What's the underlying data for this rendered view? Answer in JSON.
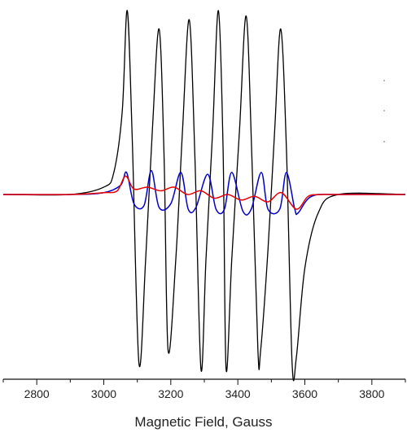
{
  "chart_data": {
    "type": "line",
    "xlabel": "Magnetic Field, Gauss",
    "xlim": [
      2700,
      3900
    ],
    "ylim": [
      -1.0,
      1.0
    ],
    "x_ticks": [
      2800,
      3000,
      3200,
      3400,
      3600,
      3800
    ],
    "x_tick_labels": [
      "2800",
      "3000",
      "3200",
      "3400",
      "3600",
      "3800"
    ],
    "y_axis_visible": false,
    "grid": false,
    "legend": "none",
    "series": [
      {
        "color": "#000000",
        "x": [
          2700,
          2900,
          3000,
          3030,
          3055,
          3070,
          3085,
          3105,
          3125,
          3145,
          3165,
          3180,
          3192,
          3215,
          3235,
          3255,
          3272,
          3290,
          3305,
          3325,
          3342,
          3356,
          3365,
          3382,
          3405,
          3425,
          3442,
          3460,
          3468,
          3490,
          3510,
          3528,
          3545,
          3562,
          3575,
          3600,
          3640,
          3700,
          3900
        ],
        "y": [
          0.0,
          0.0,
          0.04,
          0.12,
          0.45,
          1.0,
          0.3,
          -0.92,
          -0.35,
          0.35,
          0.9,
          0.2,
          -0.85,
          -0.35,
          0.35,
          0.95,
          0.2,
          -0.95,
          -0.35,
          0.35,
          1.0,
          0.25,
          -0.95,
          -0.35,
          0.35,
          0.97,
          0.2,
          -0.85,
          -0.85,
          -0.3,
          0.35,
          0.9,
          0.25,
          -0.92,
          -0.88,
          -0.4,
          -0.1,
          0.0,
          0.0
        ]
      },
      {
        "color": "#0000cc",
        "x": [
          2700,
          2900,
          3000,
          3050,
          3068,
          3090,
          3120,
          3142,
          3165,
          3200,
          3230,
          3252,
          3275,
          3310,
          3335,
          3360,
          3382,
          3415,
          3440,
          3470,
          3490,
          3525,
          3545,
          3570,
          3580,
          3620,
          3700,
          3900
        ],
        "y": [
          0.0,
          0.0,
          0.01,
          0.05,
          0.12,
          -0.05,
          -0.06,
          0.13,
          -0.07,
          -0.05,
          0.12,
          -0.08,
          -0.07,
          0.11,
          -0.08,
          -0.08,
          0.12,
          -0.09,
          -0.08,
          0.12,
          -0.08,
          -0.08,
          0.12,
          -0.08,
          -0.1,
          -0.01,
          0.0,
          0.0
        ]
      },
      {
        "color": "#e60000",
        "x": [
          2700,
          2900,
          3000,
          3040,
          3065,
          3090,
          3130,
          3170,
          3210,
          3250,
          3290,
          3330,
          3370,
          3410,
          3450,
          3490,
          3530,
          3575,
          3610,
          3650,
          3700,
          3900
        ],
        "y": [
          0.0,
          0.0,
          0.01,
          0.02,
          0.1,
          0.03,
          0.04,
          0.02,
          0.04,
          0.0,
          0.02,
          -0.02,
          0.0,
          -0.03,
          -0.01,
          -0.04,
          0.01,
          -0.08,
          -0.01,
          0.0,
          0.0,
          0.0
        ]
      }
    ]
  }
}
